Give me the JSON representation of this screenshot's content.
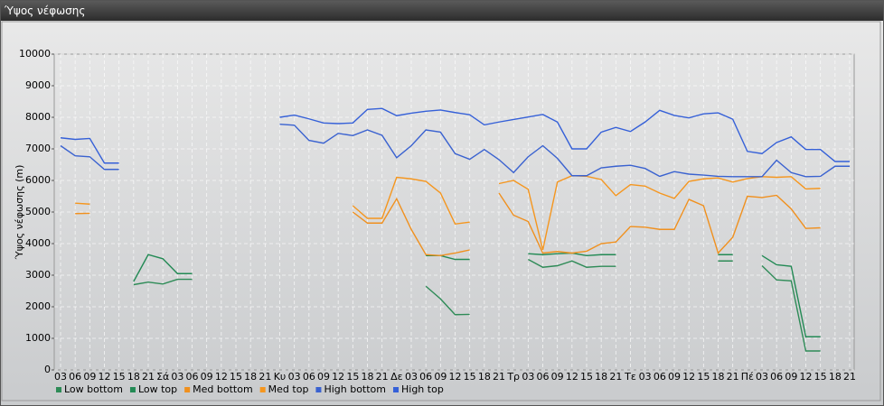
{
  "chart_data": {
    "type": "line",
    "title": "Ύψος νέφωσης",
    "y_label": "Ύψος νέφωσης (m)",
    "categories": [
      "03",
      "06",
      "09",
      "12",
      "15",
      "18",
      "21",
      "Σά",
      "03",
      "06",
      "09",
      "12",
      "15",
      "18",
      "21",
      "Κυ",
      "03",
      "06",
      "09",
      "12",
      "15",
      "18",
      "21",
      "Δε",
      "03",
      "06",
      "09",
      "12",
      "15",
      "18",
      "21",
      "Τρ",
      "03",
      "06",
      "09",
      "12",
      "15",
      "18",
      "21",
      "Τε",
      "03",
      "06",
      "09",
      "12",
      "15",
      "18",
      "21",
      "Πέ",
      "03",
      "06",
      "09",
      "12",
      "15",
      "18",
      "21"
    ],
    "ylim": [
      0,
      10000
    ],
    "yticks": [
      0,
      1000,
      2000,
      3000,
      4000,
      5000,
      6000,
      7000,
      8000,
      9000,
      10000
    ],
    "grid": true,
    "series": [
      {
        "name": "Low bottom",
        "color": "#2e8b57",
        "values": [
          null,
          null,
          null,
          null,
          null,
          2700,
          2780,
          2720,
          2870,
          2870,
          null,
          null,
          null,
          null,
          null,
          null,
          null,
          null,
          null,
          null,
          null,
          null,
          null,
          null,
          null,
          2650,
          2250,
          1750,
          1760,
          null,
          null,
          null,
          3500,
          3250,
          3300,
          3450,
          3250,
          3280,
          3280,
          null,
          null,
          null,
          null,
          null,
          null,
          3450,
          3450,
          null,
          3300,
          2850,
          2820,
          600,
          600,
          null,
          null
        ]
      },
      {
        "name": "Low top",
        "color": "#238a55",
        "values": [
          null,
          null,
          null,
          null,
          null,
          2800,
          3650,
          3520,
          3050,
          3050,
          null,
          null,
          null,
          null,
          null,
          null,
          null,
          null,
          null,
          null,
          null,
          null,
          null,
          null,
          null,
          3620,
          3620,
          3500,
          3500,
          null,
          null,
          null,
          3680,
          3650,
          3680,
          3700,
          3620,
          3650,
          3650,
          null,
          null,
          null,
          null,
          null,
          null,
          3650,
          3650,
          null,
          3620,
          3330,
          3280,
          1050,
          1050,
          null,
          null
        ]
      },
      {
        "name": "Med bottom",
        "color": "#f0901e",
        "values": [
          null,
          4950,
          4960,
          null,
          null,
          null,
          null,
          null,
          null,
          null,
          null,
          null,
          null,
          null,
          null,
          null,
          null,
          null,
          null,
          null,
          5000,
          4650,
          4650,
          5420,
          4450,
          3650,
          3620,
          3700,
          3800,
          null,
          5600,
          4900,
          4700,
          3700,
          3750,
          3700,
          3760,
          4000,
          4050,
          4540,
          4520,
          4450,
          4450,
          5400,
          5200,
          3700,
          4200,
          5500,
          5460,
          5530,
          5100,
          4480,
          4500,
          null,
          null
        ]
      },
      {
        "name": "Med top",
        "color": "#f5961e",
        "values": [
          null,
          5280,
          5250,
          null,
          null,
          null,
          null,
          null,
          null,
          null,
          null,
          null,
          null,
          null,
          null,
          null,
          null,
          null,
          null,
          null,
          5200,
          4800,
          4800,
          6100,
          6050,
          5970,
          5600,
          4620,
          4680,
          null,
          5900,
          6000,
          5720,
          3800,
          5950,
          6150,
          6130,
          6030,
          5520,
          5870,
          5820,
          5600,
          5430,
          5970,
          6050,
          6080,
          5950,
          6060,
          6120,
          6100,
          6120,
          5730,
          5750,
          null,
          null
        ]
      },
      {
        "name": "High bottom",
        "color": "#3a62d0",
        "values": [
          7100,
          6780,
          6750,
          6350,
          6350,
          null,
          null,
          null,
          null,
          null,
          null,
          null,
          null,
          null,
          null,
          7780,
          7750,
          7270,
          7180,
          7490,
          7420,
          7600,
          7430,
          6720,
          7100,
          7600,
          7530,
          6850,
          6670,
          6980,
          6660,
          6250,
          6750,
          7100,
          6700,
          6150,
          6150,
          6400,
          6450,
          6480,
          6380,
          6130,
          6280,
          6200,
          6170,
          6130,
          6120,
          6120,
          6120,
          6640,
          6250,
          6120,
          6130,
          6450,
          6450
        ]
      },
      {
        "name": "High top",
        "color": "#3560d8",
        "values": [
          7350,
          7300,
          7330,
          6550,
          6550,
          null,
          null,
          null,
          null,
          null,
          null,
          null,
          null,
          null,
          null,
          8000,
          8070,
          7950,
          7820,
          7800,
          7820,
          8250,
          8280,
          8050,
          8130,
          8190,
          8230,
          8150,
          8080,
          7760,
          7850,
          7930,
          8010,
          8090,
          7850,
          7000,
          7000,
          7530,
          7680,
          7550,
          7850,
          8220,
          8060,
          7980,
          8110,
          8140,
          7940,
          6920,
          6850,
          7200,
          7380,
          6980,
          6980,
          6600,
          6600
        ]
      }
    ]
  }
}
